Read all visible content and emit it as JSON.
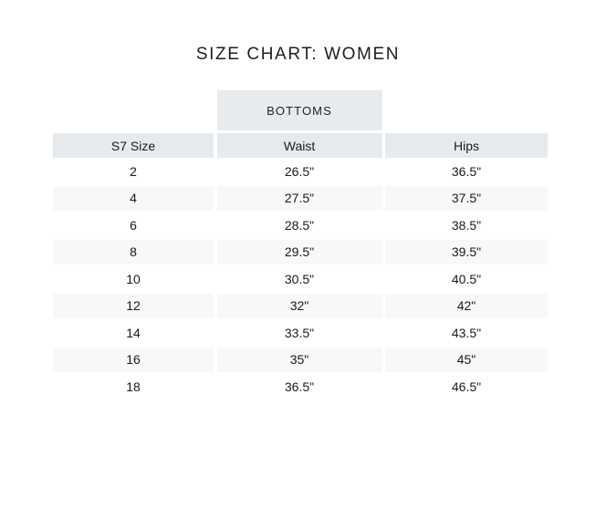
{
  "page": {
    "title": "SIZE CHART: WOMEN"
  },
  "table": {
    "group_header": "BOTTOMS",
    "columns": [
      "S7 Size",
      "Waist",
      "Hips"
    ],
    "rows": [
      [
        "2",
        "26.5\"",
        "36.5\""
      ],
      [
        "4",
        "27.5\"",
        "37.5\""
      ],
      [
        "6",
        "28.5\"",
        "38.5\""
      ],
      [
        "8",
        "29.5\"",
        "39.5\""
      ],
      [
        "10",
        "30.5\"",
        "40.5\""
      ],
      [
        "12",
        "32\"",
        "42\""
      ],
      [
        "14",
        "33.5\"",
        "43.5\""
      ],
      [
        "16",
        "35\"",
        "45\""
      ],
      [
        "18",
        "36.5\"",
        "46.5\""
      ]
    ]
  },
  "colors": {
    "group_header_bg": "#e8ebee",
    "column_header_bg": "#e7eaed",
    "stripe_bg": "#f7f8f9",
    "text": "#1a1a1a"
  }
}
